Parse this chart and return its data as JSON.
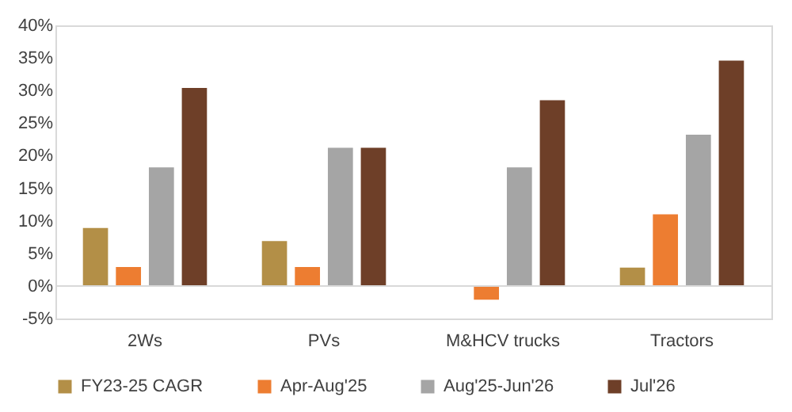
{
  "chart_data": {
    "type": "bar",
    "categories": [
      "2Ws",
      "PVs",
      "M&HCV trucks",
      "Tractors"
    ],
    "series": [
      {
        "name": "FY23-25 CAGR",
        "color": "#b38f47",
        "values": [
          9.0,
          7.0,
          null,
          2.9
        ]
      },
      {
        "name": "Apr-Aug'25",
        "color": "#ed7d31",
        "values": [
          3.0,
          3.0,
          -2.2,
          11.1
        ]
      },
      {
        "name": "Aug'25-Jun'26",
        "color": "#a5a5a5",
        "values": [
          18.3,
          21.3,
          18.3,
          23.3
        ]
      },
      {
        "name": "Jul'26",
        "color": "#6e3f28",
        "values": [
          30.5,
          21.3,
          28.6,
          34.7
        ]
      }
    ],
    "ylim": [
      -5,
      40
    ],
    "yticks": [
      {
        "value": -5,
        "label": "-5%"
      },
      {
        "value": 0,
        "label": "0%"
      },
      {
        "value": 5,
        "label": "5%"
      },
      {
        "value": 10,
        "label": "10%"
      },
      {
        "value": 15,
        "label": "15%"
      },
      {
        "value": 20,
        "label": "20%"
      },
      {
        "value": 25,
        "label": "25%"
      },
      {
        "value": 30,
        "label": "30%"
      },
      {
        "value": 35,
        "label": "35%"
      },
      {
        "value": 40,
        "label": "40%"
      }
    ],
    "ref_lines": [
      {
        "axis": "y",
        "value": 0,
        "color": "#d9d9d9"
      }
    ],
    "grid": false,
    "legend": "bottom"
  }
}
